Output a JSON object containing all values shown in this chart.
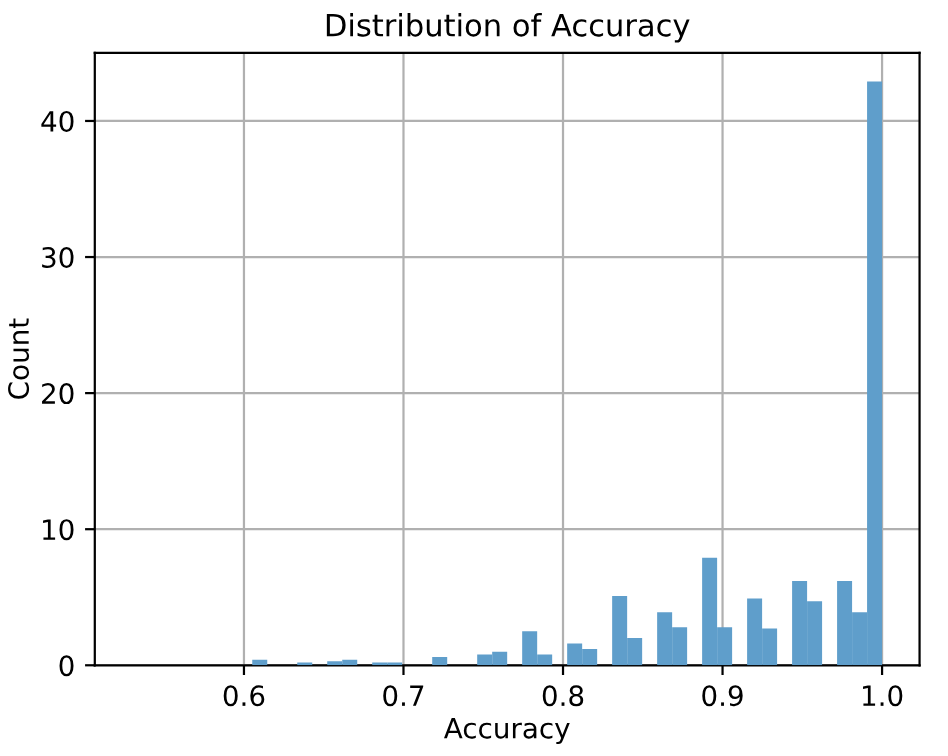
{
  "chart_data": {
    "type": "histogram",
    "title": "Distribution of Accuracy",
    "xlabel": "Accuracy",
    "ylabel": "Count",
    "bins": [
      0.53,
      0.5394,
      0.5488,
      0.5582,
      0.5676,
      0.577,
      0.5864,
      0.5958,
      0.6052,
      0.6146,
      0.624,
      0.6334,
      0.6428,
      0.6522,
      0.6616,
      0.671,
      0.6804,
      0.6898,
      0.6992,
      0.7086,
      0.718,
      0.7274,
      0.7368,
      0.7462,
      0.7556,
      0.765,
      0.7744,
      0.7838,
      0.7932,
      0.8026,
      0.812,
      0.8214,
      0.8308,
      0.8402,
      0.8496,
      0.859,
      0.8684,
      0.8778,
      0.8872,
      0.8966,
      0.906,
      0.9154,
      0.9248,
      0.9342,
      0.9436,
      0.953,
      0.9624,
      0.9718,
      0.9812,
      0.9906,
      1.0
    ],
    "values": [
      0,
      0,
      0,
      0,
      0,
      0,
      0,
      0,
      0.4,
      0,
      0,
      0.2,
      0,
      0.3,
      0.4,
      0,
      0.2,
      0.2,
      0,
      0,
      0.6,
      0,
      0,
      0.8,
      1.0,
      0,
      2.5,
      0.8,
      0,
      1.6,
      1.2,
      0,
      5.1,
      2.0,
      0,
      3.9,
      2.8,
      0,
      7.9,
      2.8,
      0,
      4.9,
      2.7,
      0,
      6.2,
      4.7,
      0,
      6.2,
      3.9,
      42.9
    ],
    "color": "#5f9ecb",
    "xlim": [
      0.5065,
      1.0235
    ],
    "xticks": [
      0.6,
      0.7,
      0.8,
      0.9,
      {
        "value": 1.0,
        "label": "1.0"
      }
    ],
    "ylim": [
      0,
      45
    ],
    "yticks": [
      0,
      10,
      20,
      30,
      40
    ],
    "grid": true
  }
}
